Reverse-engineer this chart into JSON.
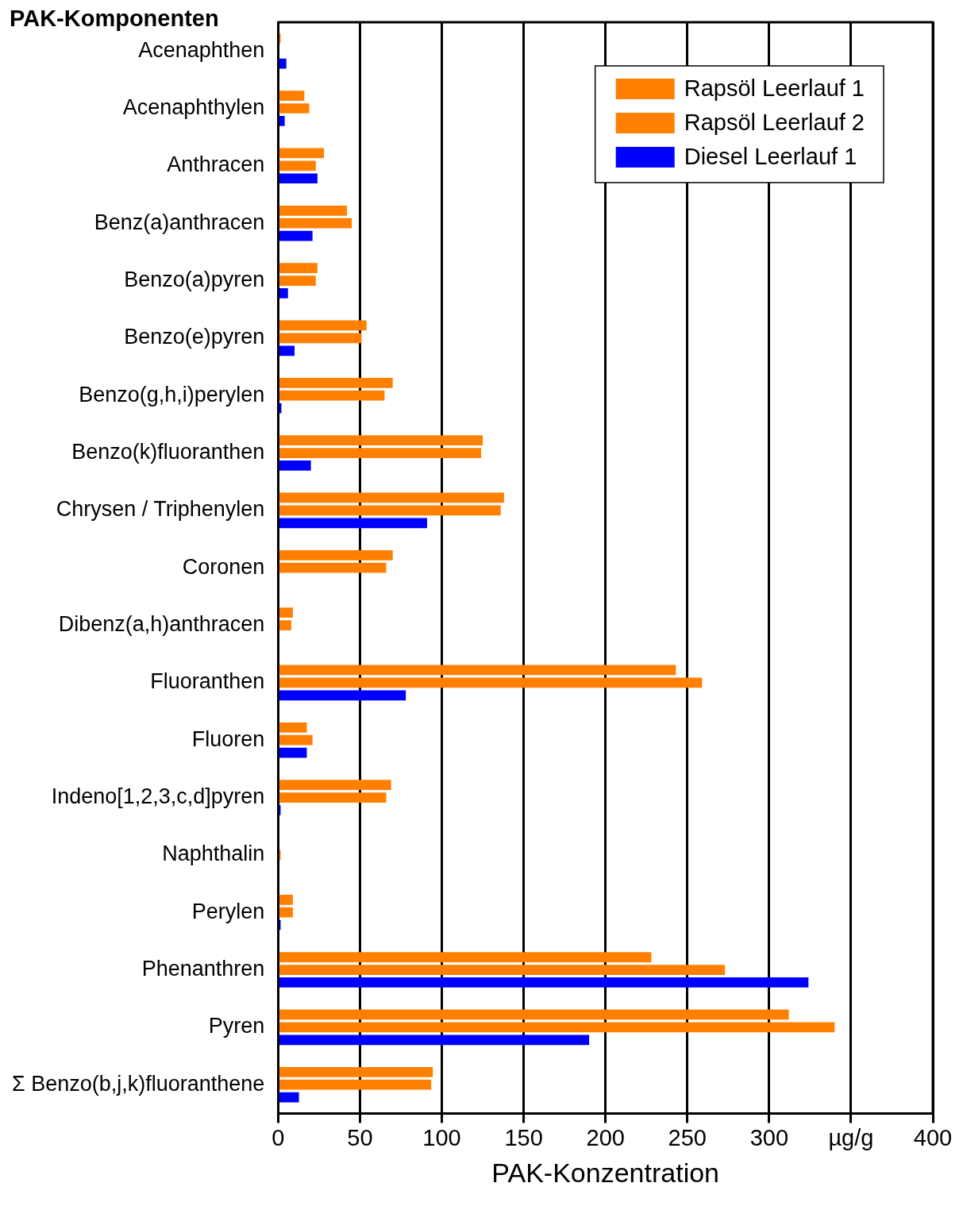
{
  "chart_data": {
    "type": "bar",
    "orientation": "horizontal",
    "xlabel": "PAK-Konzentration",
    "ylabel": "PAK-Komponenten",
    "categories": [
      "Acenaphthen",
      "Acenaphthylen",
      "Anthracen",
      "Benz(a)anthracen",
      "Benzo(a)pyren",
      "Benzo(e)pyren",
      "Benzo(g,h,i)perylen",
      "Benzo(k)fluoranthen",
      "Chrysen / Triphenylen",
      "Coronen",
      "Dibenz(a,h)anthracen",
      "Fluoranthen",
      "Fluoren",
      "Indeno[1,2,3,c,d]pyren",
      "Naphthalin",
      "Perylen",
      "Phenanthren",
      "Pyren",
      "Σ Benzo(b,j,k)fluoranthene"
    ],
    "series": [
      {
        "name": "Rapsöl Leerlauf 1",
        "color": "#ff8000",
        "values": [
          1.5,
          16,
          28,
          42,
          24,
          54,
          70,
          125,
          138,
          70,
          9,
          243,
          17.5,
          69,
          null,
          9,
          228,
          312,
          94.5
        ]
      },
      {
        "name": "Rapsöl Leerlauf 2",
        "color": "#ff8000",
        "values": [
          null,
          19,
          23,
          45,
          23,
          51,
          65,
          124,
          136,
          66,
          8,
          259,
          21,
          66,
          1.5,
          9,
          273,
          340,
          93.5
        ]
      },
      {
        "name": "Diesel Leerlauf 1",
        "color": "#0000ff",
        "values": [
          5,
          4,
          24,
          21,
          6,
          10,
          2,
          20,
          91,
          null,
          null,
          78,
          17.5,
          1.5,
          null,
          1.5,
          324,
          190,
          12.7
        ]
      }
    ],
    "xlim": [
      0,
      400
    ],
    "xticks": [
      0,
      50,
      100,
      150,
      200,
      250,
      300,
      {
        "value": 350,
        "label": "µg/g"
      },
      400
    ],
    "grid": "x",
    "legend": "top right"
  }
}
